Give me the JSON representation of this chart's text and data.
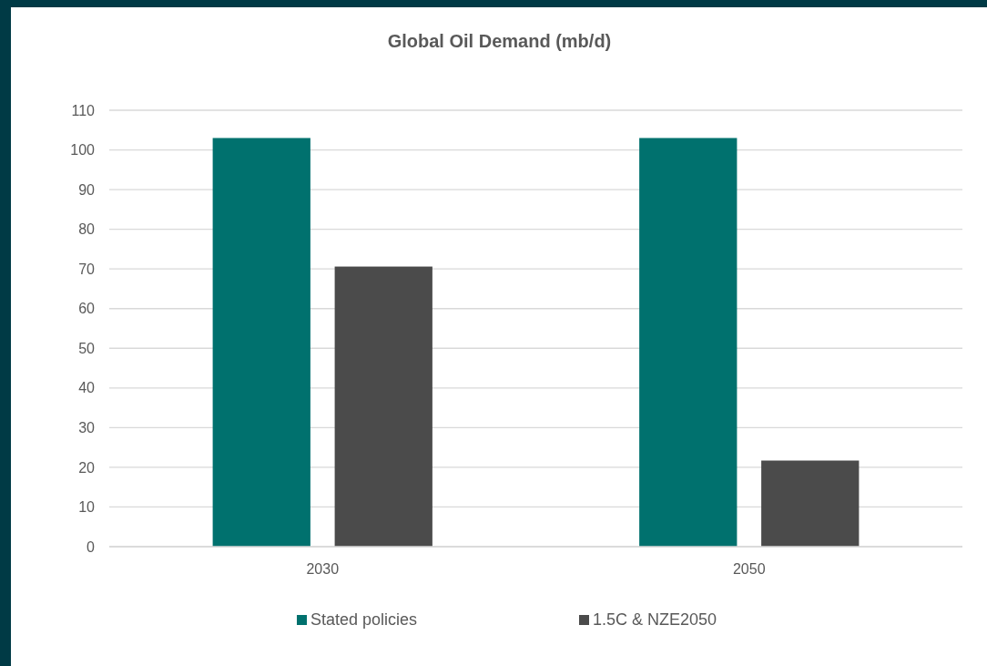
{
  "chart_data": {
    "type": "bar",
    "title": "Global Oil Demand (mb/d)",
    "categories": [
      "2030",
      "2050"
    ],
    "series": [
      {
        "name": "Stated policies",
        "color": "#00716e",
        "values": [
          103,
          103
        ]
      },
      {
        "name": "1.5C & NZE2050",
        "color": "#4b4b4b",
        "values": [
          70.6,
          21.7
        ]
      }
    ],
    "ylim": [
      0,
      110
    ],
    "yticks": [
      0,
      10,
      20,
      30,
      40,
      50,
      60,
      70,
      80,
      90,
      100,
      110
    ],
    "grid": "y",
    "legend": "bottom"
  }
}
